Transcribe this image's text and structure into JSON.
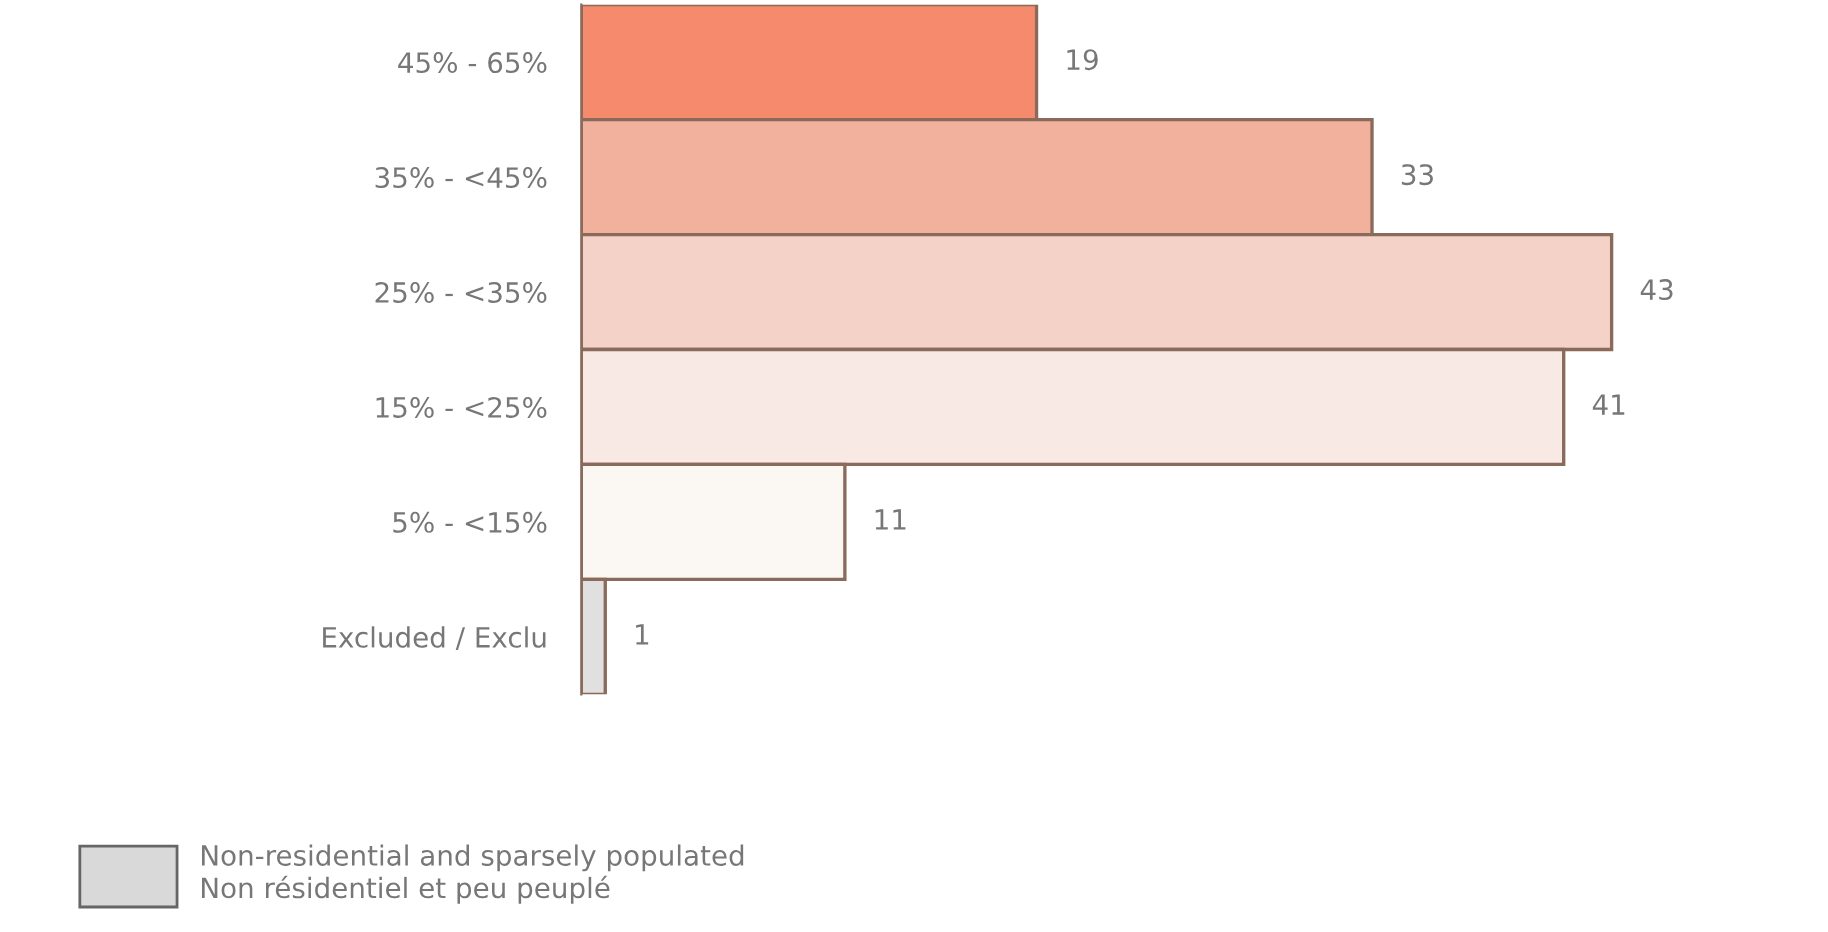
{
  "chart_data": {
    "type": "bar",
    "orientation": "horizontal",
    "categories": [
      "45% - 65%",
      "35% - <45%",
      "25% - <35%",
      "15% - <25%",
      "5% - <15%",
      "Excluded / Exclu"
    ],
    "series": [
      {
        "name": "Non-residential and sparsely populated\nNon résidentiel et peu peuplé",
        "color": "#d9d9d9",
        "colors": [
          "#f58a6c",
          "#f2b19c",
          "#f5d2c8",
          "#f8e9e5",
          "#fbf7f3",
          "#e0e0e0"
        ],
        "values": [
          19,
          33,
          43,
          41,
          11,
          1
        ]
      }
    ],
    "data_labels": true,
    "legend": "bottom left",
    "grid": false
  }
}
